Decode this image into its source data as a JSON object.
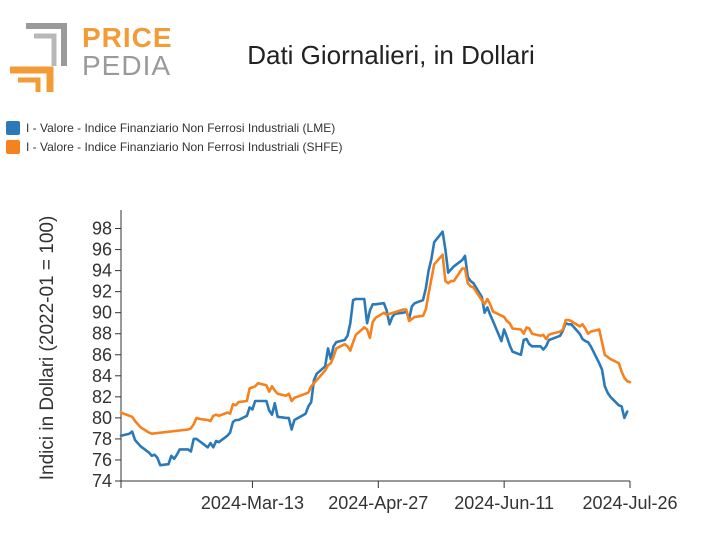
{
  "logo": {
    "word1": "PRICE",
    "word2": "PEDIA",
    "accent": "#f39c36",
    "gray": "#9a9a9a"
  },
  "chart_data": {
    "type": "line",
    "title": "Dati Giornalieri, in Dollari",
    "ylabel": "Indici in Dollari (2022-01 = 100)",
    "xlabel": "",
    "ylim": [
      74,
      99
    ],
    "yticks": [
      74,
      76,
      78,
      80,
      82,
      84,
      86,
      88,
      90,
      92,
      94,
      96,
      98
    ],
    "xlim": [
      "2024-01-26",
      "2024-07-26"
    ],
    "xticks": [
      "2024-Mar-13",
      "2024-Apr-27",
      "2024-Jun-11",
      "2024-Jul-26"
    ],
    "legend_position": "top-left",
    "series": [
      {
        "name": "I - Valore - Indice Finanziario Non Ferrosi Industriali (LME)",
        "color": "#2a7ab9",
        "points": [
          [
            "2024-01-26",
            78.3
          ],
          [
            "2024-01-29",
            78.5
          ],
          [
            "2024-01-30",
            78.7
          ],
          [
            "2024-01-31",
            77.9
          ],
          [
            "2024-02-01",
            77.6
          ],
          [
            "2024-02-02",
            77.3
          ],
          [
            "2024-02-05",
            76.7
          ],
          [
            "2024-02-06",
            76.4
          ],
          [
            "2024-02-07",
            76.5
          ],
          [
            "2024-02-08",
            76.2
          ],
          [
            "2024-02-09",
            75.5
          ],
          [
            "2024-02-12",
            75.6
          ],
          [
            "2024-02-13",
            76.4
          ],
          [
            "2024-02-14",
            76.1
          ],
          [
            "2024-02-15",
            76.5
          ],
          [
            "2024-02-16",
            77.0
          ],
          [
            "2024-02-19",
            77.0
          ],
          [
            "2024-02-20",
            76.8
          ],
          [
            "2024-02-21",
            78.0
          ],
          [
            "2024-02-22",
            78.0
          ],
          [
            "2024-02-23",
            77.8
          ],
          [
            "2024-02-26",
            77.2
          ],
          [
            "2024-02-27",
            77.6
          ],
          [
            "2024-02-28",
            77.2
          ],
          [
            "2024-02-29",
            77.8
          ],
          [
            "2024-03-01",
            77.7
          ],
          [
            "2024-03-04",
            78.3
          ],
          [
            "2024-03-05",
            78.6
          ],
          [
            "2024-03-06",
            79.6
          ],
          [
            "2024-03-07",
            79.8
          ],
          [
            "2024-03-08",
            79.8
          ],
          [
            "2024-03-11",
            80.2
          ],
          [
            "2024-03-12",
            81.0
          ],
          [
            "2024-03-13",
            80.8
          ],
          [
            "2024-03-14",
            81.6
          ],
          [
            "2024-03-15",
            81.6
          ],
          [
            "2024-03-18",
            81.6
          ],
          [
            "2024-03-19",
            80.7
          ],
          [
            "2024-03-20",
            80.3
          ],
          [
            "2024-03-21",
            81.4
          ],
          [
            "2024-03-22",
            80.1
          ],
          [
            "2024-03-25",
            80.0
          ],
          [
            "2024-03-26",
            80.0
          ],
          [
            "2024-03-27",
            78.9
          ],
          [
            "2024-03-28",
            79.8
          ],
          [
            "2024-04-01",
            80.4
          ],
          [
            "2024-04-02",
            81.1
          ],
          [
            "2024-04-03",
            81.5
          ],
          [
            "2024-04-04",
            83.6
          ],
          [
            "2024-04-05",
            84.2
          ],
          [
            "2024-04-08",
            84.9
          ],
          [
            "2024-04-09",
            86.6
          ],
          [
            "2024-04-10",
            85.6
          ],
          [
            "2024-04-11",
            86.8
          ],
          [
            "2024-04-12",
            87.2
          ],
          [
            "2024-04-15",
            87.4
          ],
          [
            "2024-04-16",
            87.8
          ],
          [
            "2024-04-17",
            89.0
          ],
          [
            "2024-04-18",
            91.2
          ],
          [
            "2024-04-19",
            91.3
          ],
          [
            "2024-04-22",
            91.3
          ],
          [
            "2024-04-23",
            89.0
          ],
          [
            "2024-04-24",
            90.2
          ],
          [
            "2024-04-25",
            90.8
          ],
          [
            "2024-04-26",
            90.8
          ],
          [
            "2024-04-29",
            90.9
          ],
          [
            "2024-04-30",
            90.2
          ],
          [
            "2024-05-01",
            88.9
          ],
          [
            "2024-05-02",
            89.6
          ],
          [
            "2024-05-03",
            89.9
          ],
          [
            "2024-05-06",
            90.0
          ],
          [
            "2024-05-07",
            90.1
          ],
          [
            "2024-05-08",
            89.4
          ],
          [
            "2024-05-09",
            90.6
          ],
          [
            "2024-05-10",
            90.9
          ],
          [
            "2024-05-13",
            91.2
          ],
          [
            "2024-05-14",
            92.3
          ],
          [
            "2024-05-15",
            94.0
          ],
          [
            "2024-05-16",
            95.1
          ],
          [
            "2024-05-17",
            96.7
          ],
          [
            "2024-05-20",
            97.7
          ],
          [
            "2024-05-21",
            96.0
          ],
          [
            "2024-05-22",
            93.8
          ],
          [
            "2024-05-23",
            94.1
          ],
          [
            "2024-05-24",
            94.4
          ],
          [
            "2024-05-27",
            95.0
          ],
          [
            "2024-05-28",
            95.4
          ],
          [
            "2024-05-29",
            93.4
          ],
          [
            "2024-05-30",
            93.0
          ],
          [
            "2024-05-31",
            92.8
          ],
          [
            "2024-06-03",
            91.5
          ],
          [
            "2024-06-04",
            90.0
          ],
          [
            "2024-06-05",
            90.5
          ],
          [
            "2024-06-06",
            89.8
          ],
          [
            "2024-06-07",
            89.2
          ],
          [
            "2024-06-10",
            87.3
          ],
          [
            "2024-06-11",
            88.4
          ],
          [
            "2024-06-12",
            87.7
          ],
          [
            "2024-06-13",
            86.9
          ],
          [
            "2024-06-14",
            86.3
          ],
          [
            "2024-06-17",
            86.0
          ],
          [
            "2024-06-18",
            87.4
          ],
          [
            "2024-06-19",
            87.5
          ],
          [
            "2024-06-20",
            87.0
          ],
          [
            "2024-06-21",
            86.8
          ],
          [
            "2024-06-24",
            86.8
          ],
          [
            "2024-06-25",
            86.5
          ],
          [
            "2024-06-26",
            86.8
          ],
          [
            "2024-06-27",
            87.4
          ],
          [
            "2024-06-28",
            87.5
          ],
          [
            "2024-07-01",
            87.8
          ],
          [
            "2024-07-02",
            88.3
          ],
          [
            "2024-07-03",
            89.0
          ],
          [
            "2024-07-04",
            88.9
          ],
          [
            "2024-07-05",
            88.9
          ],
          [
            "2024-07-08",
            88.0
          ],
          [
            "2024-07-09",
            87.5
          ],
          [
            "2024-07-10",
            87.3
          ],
          [
            "2024-07-11",
            87.2
          ],
          [
            "2024-07-12",
            86.8
          ],
          [
            "2024-07-15",
            85.2
          ],
          [
            "2024-07-16",
            84.6
          ],
          [
            "2024-07-17",
            83.0
          ],
          [
            "2024-07-18",
            82.4
          ],
          [
            "2024-07-19",
            82.0
          ],
          [
            "2024-07-22",
            81.2
          ],
          [
            "2024-07-23",
            81.1
          ],
          [
            "2024-07-24",
            80.0
          ],
          [
            "2024-07-25",
            80.6
          ]
        ]
      },
      {
        "name": "I - Valore - Indice Finanziario Non Ferrosi Industriali (SHFE)",
        "color": "#f5821f",
        "points": [
          [
            "2024-01-26",
            80.5
          ],
          [
            "2024-01-29",
            80.2
          ],
          [
            "2024-01-30",
            80.1
          ],
          [
            "2024-01-31",
            79.7
          ],
          [
            "2024-02-01",
            79.4
          ],
          [
            "2024-02-02",
            79.1
          ],
          [
            "2024-02-05",
            78.6
          ],
          [
            "2024-02-06",
            78.5
          ],
          [
            "2024-02-19",
            78.9
          ],
          [
            "2024-02-20",
            79.0
          ],
          [
            "2024-02-21",
            79.4
          ],
          [
            "2024-02-22",
            80.0
          ],
          [
            "2024-02-23",
            79.9
          ],
          [
            "2024-02-26",
            79.8
          ],
          [
            "2024-02-27",
            79.7
          ],
          [
            "2024-02-28",
            80.2
          ],
          [
            "2024-02-29",
            80.3
          ],
          [
            "2024-03-01",
            80.2
          ],
          [
            "2024-03-04",
            80.5
          ],
          [
            "2024-03-05",
            80.4
          ],
          [
            "2024-03-06",
            81.3
          ],
          [
            "2024-03-07",
            81.2
          ],
          [
            "2024-03-08",
            81.5
          ],
          [
            "2024-03-11",
            81.6
          ],
          [
            "2024-03-12",
            82.8
          ],
          [
            "2024-03-13",
            82.9
          ],
          [
            "2024-03-14",
            83.0
          ],
          [
            "2024-03-15",
            83.3
          ],
          [
            "2024-03-18",
            83.1
          ],
          [
            "2024-03-19",
            82.5
          ],
          [
            "2024-03-20",
            83.0
          ],
          [
            "2024-03-21",
            82.6
          ],
          [
            "2024-03-22",
            82.3
          ],
          [
            "2024-03-25",
            82.1
          ],
          [
            "2024-03-26",
            82.3
          ],
          [
            "2024-03-27",
            81.6
          ],
          [
            "2024-03-28",
            81.9
          ],
          [
            "2024-04-01",
            82.3
          ],
          [
            "2024-04-02",
            82.4
          ],
          [
            "2024-04-03",
            83.0
          ],
          [
            "2024-04-08",
            84.5
          ],
          [
            "2024-04-09",
            85.0
          ],
          [
            "2024-04-10",
            85.2
          ],
          [
            "2024-04-11",
            85.8
          ],
          [
            "2024-04-12",
            86.6
          ],
          [
            "2024-04-15",
            87.0
          ],
          [
            "2024-04-16",
            86.8
          ],
          [
            "2024-04-17",
            86.4
          ],
          [
            "2024-04-18",
            87.2
          ],
          [
            "2024-04-19",
            87.9
          ],
          [
            "2024-04-22",
            88.6
          ],
          [
            "2024-04-23",
            88.4
          ],
          [
            "2024-04-24",
            87.6
          ],
          [
            "2024-04-25",
            89.1
          ],
          [
            "2024-04-26",
            89.5
          ],
          [
            "2024-04-29",
            90.0
          ],
          [
            "2024-04-30",
            89.8
          ],
          [
            "2024-05-06",
            90.3
          ],
          [
            "2024-05-07",
            90.3
          ],
          [
            "2024-05-08",
            89.2
          ],
          [
            "2024-05-09",
            89.4
          ],
          [
            "2024-05-10",
            89.6
          ],
          [
            "2024-05-13",
            89.7
          ],
          [
            "2024-05-14",
            90.3
          ],
          [
            "2024-05-15",
            91.8
          ],
          [
            "2024-05-16",
            93.2
          ],
          [
            "2024-05-17",
            94.6
          ],
          [
            "2024-05-20",
            95.5
          ],
          [
            "2024-05-21",
            93.0
          ],
          [
            "2024-05-22",
            92.8
          ],
          [
            "2024-05-23",
            93.0
          ],
          [
            "2024-05-24",
            93.0
          ],
          [
            "2024-05-27",
            94.2
          ],
          [
            "2024-05-28",
            94.2
          ],
          [
            "2024-05-29",
            92.8
          ],
          [
            "2024-05-30",
            92.5
          ],
          [
            "2024-05-31",
            92.4
          ],
          [
            "2024-06-03",
            91.2
          ],
          [
            "2024-06-04",
            90.8
          ],
          [
            "2024-06-05",
            91.3
          ],
          [
            "2024-06-06",
            90.8
          ],
          [
            "2024-06-07",
            90.1
          ],
          [
            "2024-06-11",
            89.6
          ],
          [
            "2024-06-12",
            89.2
          ],
          [
            "2024-06-13",
            89.0
          ],
          [
            "2024-06-14",
            88.5
          ],
          [
            "2024-06-17",
            88.4
          ],
          [
            "2024-06-18",
            88.0
          ],
          [
            "2024-06-19",
            88.6
          ],
          [
            "2024-06-20",
            88.5
          ],
          [
            "2024-06-21",
            88.0
          ],
          [
            "2024-06-24",
            87.8
          ],
          [
            "2024-06-25",
            87.9
          ],
          [
            "2024-06-26",
            87.5
          ],
          [
            "2024-06-27",
            87.9
          ],
          [
            "2024-06-28",
            88.0
          ],
          [
            "2024-07-01",
            88.2
          ],
          [
            "2024-07-02",
            88.4
          ],
          [
            "2024-07-03",
            89.3
          ],
          [
            "2024-07-04",
            89.3
          ],
          [
            "2024-07-05",
            89.2
          ],
          [
            "2024-07-08",
            88.7
          ],
          [
            "2024-07-09",
            88.9
          ],
          [
            "2024-07-10",
            88.5
          ],
          [
            "2024-07-11",
            88.0
          ],
          [
            "2024-07-12",
            88.2
          ],
          [
            "2024-07-15",
            88.4
          ],
          [
            "2024-07-16",
            87.2
          ],
          [
            "2024-07-17",
            86.0
          ],
          [
            "2024-07-18",
            85.8
          ],
          [
            "2024-07-19",
            85.6
          ],
          [
            "2024-07-22",
            85.2
          ],
          [
            "2024-07-23",
            84.4
          ],
          [
            "2024-07-24",
            83.8
          ],
          [
            "2024-07-25",
            83.5
          ],
          [
            "2024-07-26",
            83.4
          ]
        ]
      }
    ]
  }
}
